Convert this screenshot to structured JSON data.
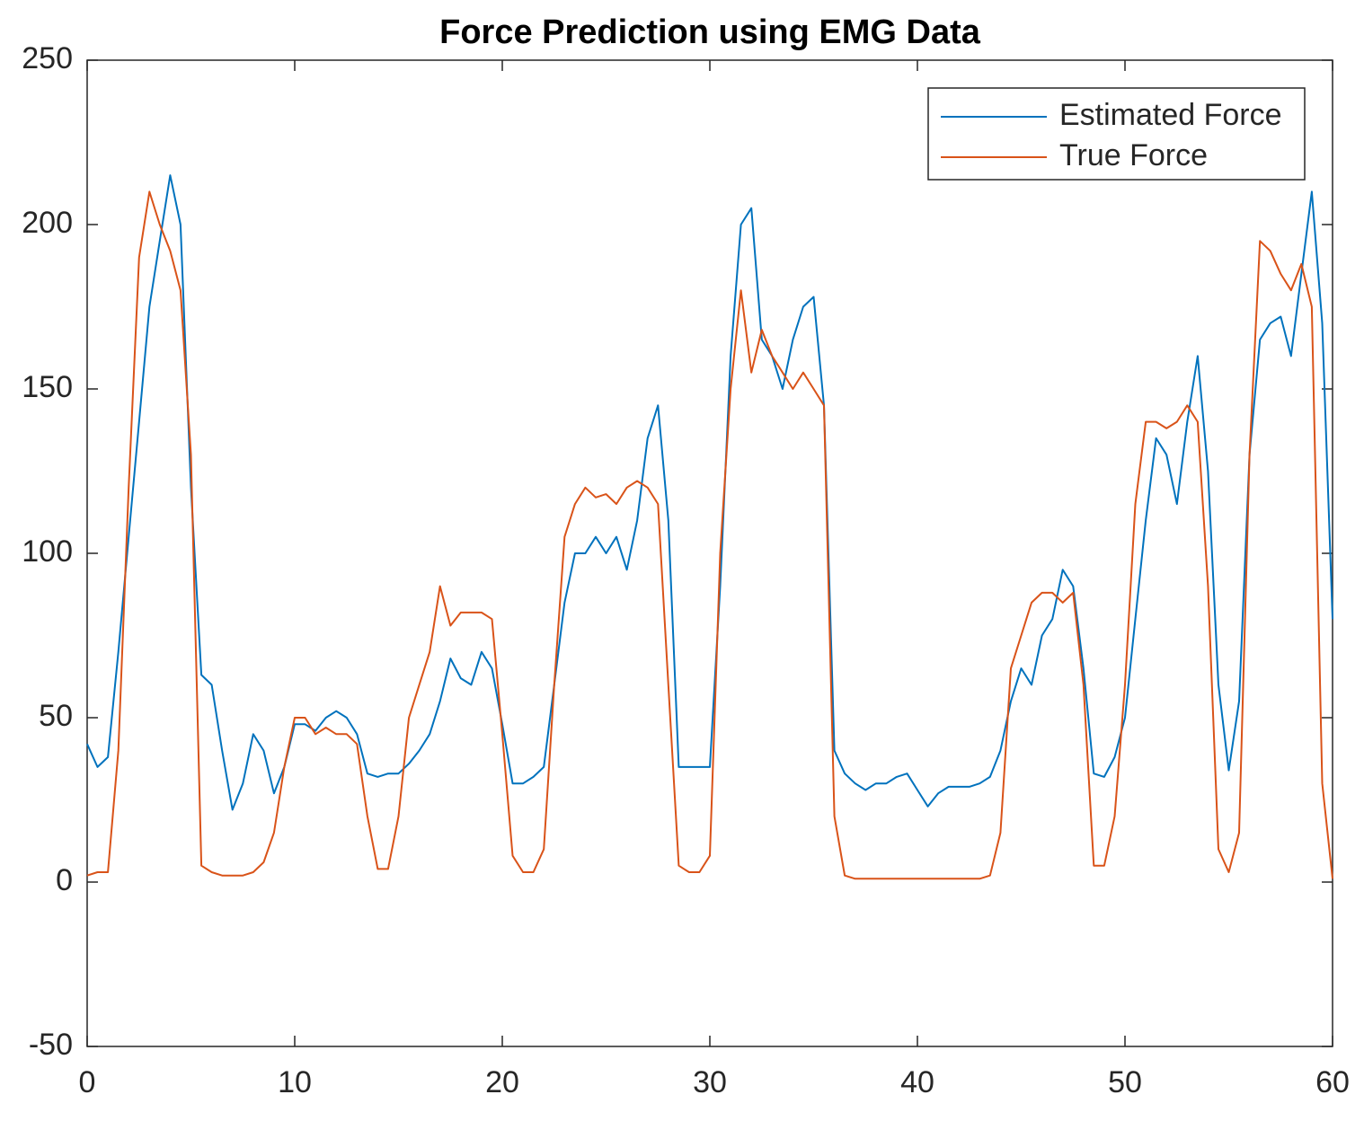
{
  "chart_data": {
    "type": "line",
    "title": "Force Prediction using EMG Data",
    "x": [
      0,
      0.5,
      1,
      1.5,
      2,
      2.5,
      3,
      3.5,
      4,
      4.5,
      5,
      5.5,
      6,
      6.5,
      7,
      7.5,
      8,
      8.5,
      9,
      9.5,
      10,
      10.5,
      11,
      11.5,
      12,
      12.5,
      13,
      13.5,
      14,
      14.5,
      15,
      15.5,
      16,
      16.5,
      17,
      17.5,
      18,
      18.5,
      19,
      19.5,
      20,
      20.5,
      21,
      21.5,
      22,
      22.5,
      23,
      23.5,
      24,
      24.5,
      25,
      25.5,
      26,
      26.5,
      27,
      27.5,
      28,
      28.5,
      29,
      29.5,
      30,
      30.5,
      31,
      31.5,
      32,
      32.5,
      33,
      33.5,
      34,
      34.5,
      35,
      35.5,
      36,
      36.5,
      37,
      37.5,
      38,
      38.5,
      39,
      39.5,
      40,
      40.5,
      41,
      41.5,
      42,
      42.5,
      43,
      43.5,
      44,
      44.5,
      45,
      45.5,
      46,
      46.5,
      47,
      47.5,
      48,
      48.5,
      49,
      49.5,
      50,
      50.5,
      51,
      51.5,
      52,
      52.5,
      53,
      53.5,
      54,
      54.5,
      55,
      55.5,
      56,
      56.5,
      57,
      57.5,
      58,
      58.5,
      59,
      59.5,
      60
    ],
    "series": [
      {
        "name": "Estimated Force",
        "color": "#0072bd",
        "values": [
          42,
          35,
          38,
          70,
          105,
          140,
          175,
          195,
          215,
          200,
          120,
          63,
          60,
          40,
          22,
          30,
          45,
          40,
          27,
          35,
          48,
          48,
          46,
          50,
          52,
          50,
          45,
          33,
          32,
          33,
          33,
          36,
          40,
          45,
          55,
          68,
          62,
          60,
          70,
          65,
          48,
          30,
          30,
          32,
          35,
          60,
          85,
          100,
          100,
          105,
          100,
          105,
          95,
          110,
          135,
          145,
          110,
          35,
          35,
          35,
          35,
          90,
          160,
          200,
          205,
          165,
          160,
          150,
          165,
          175,
          178,
          145,
          40,
          33,
          30,
          28,
          30,
          30,
          32,
          33,
          28,
          23,
          27,
          29,
          29,
          29,
          30,
          32,
          40,
          55,
          65,
          60,
          75,
          80,
          95,
          90,
          65,
          33,
          32,
          38,
          50,
          80,
          110,
          135,
          130,
          115,
          140,
          160,
          125,
          60,
          34,
          55,
          130,
          165,
          170,
          172,
          160,
          185,
          210,
          170,
          80
        ]
      },
      {
        "name": "True Force",
        "color": "#d95319",
        "values": [
          2,
          3,
          3,
          40,
          120,
          190,
          210,
          200,
          192,
          180,
          130,
          5,
          3,
          2,
          2,
          2,
          3,
          6,
          15,
          35,
          50,
          50,
          45,
          47,
          45,
          45,
          42,
          20,
          4,
          4,
          20,
          50,
          60,
          70,
          90,
          78,
          82,
          82,
          82,
          80,
          45,
          8,
          3,
          3,
          10,
          60,
          105,
          115,
          120,
          117,
          118,
          115,
          120,
          122,
          120,
          115,
          60,
          5,
          3,
          3,
          8,
          100,
          150,
          180,
          155,
          168,
          160,
          155,
          150,
          155,
          150,
          145,
          20,
          2,
          1,
          1,
          1,
          1,
          1,
          1,
          1,
          1,
          1,
          1,
          1,
          1,
          1,
          2,
          15,
          65,
          75,
          85,
          88,
          88,
          85,
          88,
          60,
          5,
          5,
          20,
          60,
          115,
          140,
          140,
          138,
          140,
          145,
          140,
          90,
          10,
          3,
          15,
          130,
          195,
          192,
          185,
          180,
          188,
          175,
          30,
          1
        ]
      }
    ],
    "xlim": [
      0,
      60
    ],
    "xticks": [
      0,
      10,
      20,
      30,
      40,
      50,
      60
    ],
    "ylim": [
      -50,
      250
    ],
    "yticks": [
      -50,
      0,
      50,
      100,
      150,
      200,
      250
    ],
    "legend": "northeast"
  }
}
